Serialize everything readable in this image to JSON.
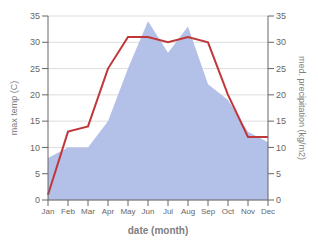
{
  "chart_data": {
    "type": "line",
    "xlabel": "date (month)",
    "ylabel": "max temp (C)",
    "y2label": "med. precipitation (kg/m2)",
    "categories": [
      "Jan",
      "Feb",
      "Mar",
      "Apr",
      "May",
      "Jun",
      "Jul",
      "Aug",
      "Sep",
      "Oct",
      "Nov",
      "Dec"
    ],
    "series": [
      {
        "type": "area",
        "axis": "y2",
        "color": "#b3c0e8",
        "values": [
          8,
          10,
          10,
          15,
          25,
          34,
          28,
          33,
          22,
          19,
          13,
          11
        ]
      },
      {
        "type": "line",
        "color": "#c0373a",
        "values": [
          1,
          13,
          14,
          25,
          31,
          31,
          30,
          31,
          30,
          20,
          12,
          12
        ]
      }
    ],
    "ylim": [
      0,
      35
    ],
    "yticks": [
      0,
      5,
      10,
      15,
      20,
      25,
      30,
      35
    ],
    "y2lim": [
      0,
      35
    ],
    "y2ticks": [
      0,
      5,
      10,
      15,
      20,
      25,
      30,
      35
    ],
    "grid": true
  }
}
